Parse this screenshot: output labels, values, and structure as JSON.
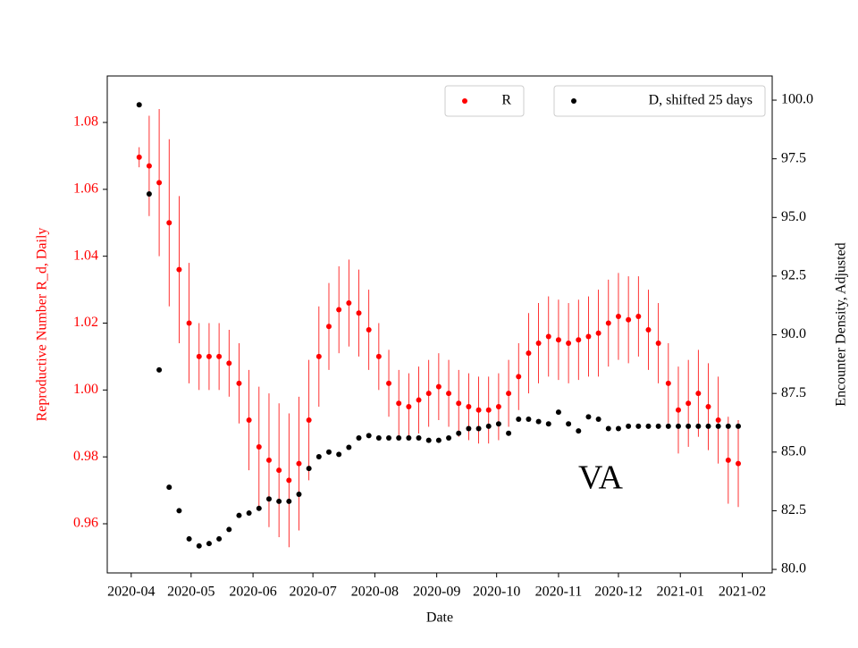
{
  "chart_data": {
    "type": "errorbar_dual",
    "x_label": "Date",
    "y_label": "Reproductive Number R_d, Daily",
    "y2_label": "Encounter Density, Adjusted",
    "annotation": "VA",
    "xlim": [
      -12,
      321
    ],
    "ylim": [
      0.9453,
      1.0939
    ],
    "y2lim": [
      79.85,
      101.03
    ],
    "xticks": [
      {
        "value": 0,
        "label": "2020-04"
      },
      {
        "value": 30,
        "label": "2020-05"
      },
      {
        "value": 61,
        "label": "2020-06"
      },
      {
        "value": 91,
        "label": "2020-07"
      },
      {
        "value": 122,
        "label": "2020-08"
      },
      {
        "value": 153,
        "label": "2020-09"
      },
      {
        "value": 183,
        "label": "2020-10"
      },
      {
        "value": 214,
        "label": "2020-11"
      },
      {
        "value": 244,
        "label": "2020-12"
      },
      {
        "value": 275,
        "label": "2021-01"
      },
      {
        "value": 306,
        "label": "2021-02"
      }
    ],
    "yticks": [
      {
        "value": 0.96,
        "label": "0.96"
      },
      {
        "value": 0.98,
        "label": "0.98"
      },
      {
        "value": 1.0,
        "label": "1.00"
      },
      {
        "value": 1.02,
        "label": "1.02"
      },
      {
        "value": 1.04,
        "label": "1.04"
      },
      {
        "value": 1.06,
        "label": "1.06"
      },
      {
        "value": 1.08,
        "label": "1.08"
      }
    ],
    "y2ticks": [
      {
        "value": 80,
        "label": "80.0"
      },
      {
        "value": 82.5,
        "label": "82.5"
      },
      {
        "value": 85,
        "label": "85.0"
      },
      {
        "value": 87.5,
        "label": "87.5"
      },
      {
        "value": 90,
        "label": "90.0"
      },
      {
        "value": 92.5,
        "label": "92.5"
      },
      {
        "value": 95,
        "label": "95.0"
      },
      {
        "value": 97.5,
        "label": "97.5"
      },
      {
        "value": 100,
        "label": "100.0"
      }
    ],
    "x": [
      4,
      9,
      14,
      19,
      24,
      29,
      34,
      39,
      44,
      49,
      54,
      59,
      64,
      69,
      74,
      79,
      84,
      89,
      94,
      99,
      104,
      109,
      114,
      119,
      124,
      129,
      134,
      139,
      144,
      149,
      154,
      159,
      164,
      169,
      174,
      179,
      184,
      189,
      194,
      199,
      204,
      209,
      214,
      219,
      224,
      229,
      234,
      239,
      244,
      249,
      254,
      259,
      264,
      269,
      274,
      279,
      284,
      289,
      294,
      299,
      304
    ],
    "series": [
      {
        "name": "R",
        "color": "#ff0000",
        "axis": "y",
        "legend": "upper center",
        "values": [
          1.0696,
          1.067,
          1.062,
          1.05,
          1.036,
          1.02,
          1.01,
          1.01,
          1.01,
          1.008,
          1.002,
          0.991,
          0.983,
          0.979,
          0.976,
          0.973,
          0.978,
          0.991,
          1.01,
          1.019,
          1.024,
          1.026,
          1.023,
          1.018,
          1.01,
          1.002,
          0.996,
          0.995,
          0.997,
          0.999,
          1.001,
          0.999,
          0.996,
          0.995,
          0.994,
          0.994,
          0.995,
          0.999,
          1.004,
          1.011,
          1.014,
          1.016,
          1.015,
          1.014,
          1.015,
          1.016,
          1.017,
          1.02,
          1.022,
          1.021,
          1.022,
          1.018,
          1.014,
          1.002,
          0.994,
          0.996,
          0.999,
          0.995,
          0.991,
          0.979,
          0.978
        ],
        "errors": [
          0.003,
          0.015,
          0.022,
          0.025,
          0.022,
          0.018,
          0.01,
          0.01,
          0.01,
          0.01,
          0.012,
          0.015,
          0.018,
          0.02,
          0.02,
          0.02,
          0.02,
          0.018,
          0.015,
          0.013,
          0.013,
          0.013,
          0.013,
          0.012,
          0.01,
          0.01,
          0.01,
          0.01,
          0.01,
          0.01,
          0.01,
          0.01,
          0.01,
          0.01,
          0.01,
          0.01,
          0.01,
          0.01,
          0.01,
          0.012,
          0.012,
          0.012,
          0.012,
          0.012,
          0.012,
          0.012,
          0.013,
          0.013,
          0.013,
          0.013,
          0.012,
          0.012,
          0.012,
          0.012,
          0.013,
          0.013,
          0.013,
          0.013,
          0.013,
          0.013,
          0.013
        ]
      },
      {
        "name": "D, shifted 25 days",
        "color": "#000000",
        "axis": "y2",
        "legend": "upper right",
        "values": [
          99.8,
          96.0,
          88.5,
          83.5,
          82.5,
          81.3,
          81.0,
          81.1,
          81.3,
          81.7,
          82.3,
          82.4,
          82.6,
          83.0,
          82.9,
          82.9,
          83.2,
          84.3,
          84.8,
          85.0,
          84.9,
          85.2,
          85.6,
          85.7,
          85.6,
          85.6,
          85.6,
          85.6,
          85.6,
          85.5,
          85.5,
          85.6,
          85.8,
          86.0,
          86.0,
          86.1,
          86.2,
          85.8,
          86.4,
          86.4,
          86.3,
          86.2,
          86.7,
          86.2,
          85.9,
          86.5,
          86.4,
          86.0,
          86.0,
          86.1,
          86.1,
          86.1,
          86.1,
          86.1,
          86.1,
          86.1,
          86.1,
          86.1,
          86.1,
          86.1,
          86.1
        ]
      }
    ]
  }
}
